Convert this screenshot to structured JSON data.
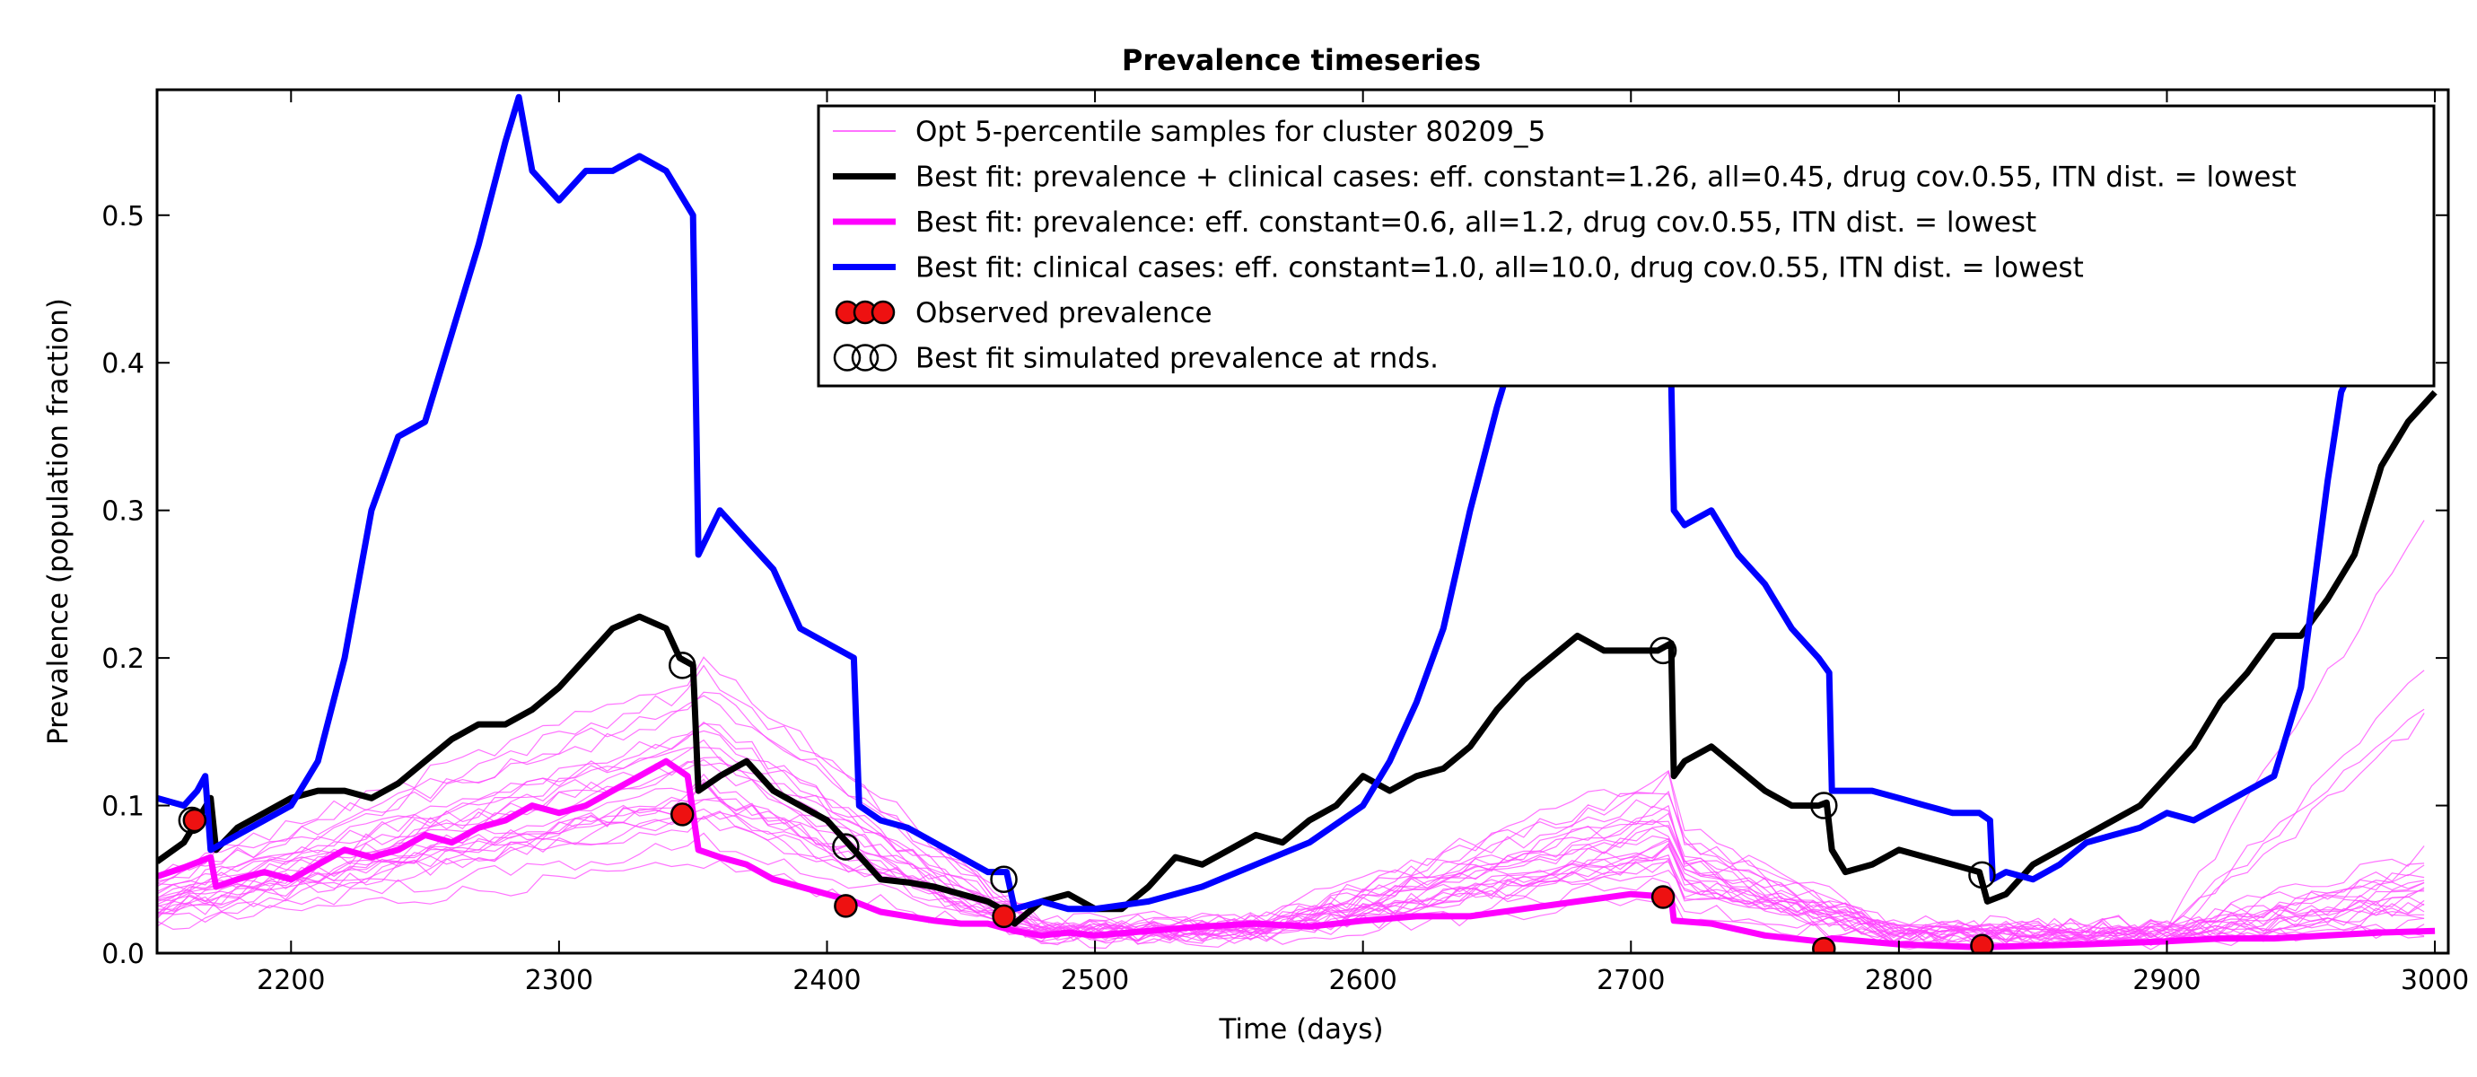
{
  "chart_data": {
    "type": "line",
    "title": "Prevalence timeseries",
    "xlabel": "Time (days)",
    "ylabel": "Prevalence (population fraction)",
    "xlim": [
      2150,
      3005
    ],
    "ylim": [
      0.0,
      0.585
    ],
    "xticks": [
      2200,
      2300,
      2400,
      2500,
      2600,
      2700,
      2800,
      2900,
      3000
    ],
    "yticks": [
      0.0,
      0.1,
      0.2,
      0.3,
      0.4,
      0.5
    ],
    "xtick_labels": [
      "2200",
      "2300",
      "2400",
      "2500",
      "2600",
      "2700",
      "2800",
      "2900",
      "3000"
    ],
    "ytick_labels": [
      "0.0",
      "0.1",
      "0.2",
      "0.3",
      "0.4",
      "0.5"
    ],
    "grid": false,
    "legend_position": "top-right",
    "colors": {
      "samples": "#ff44ff",
      "black": "#000000",
      "magenta": "#ff00ff",
      "blue": "#0000ff",
      "observed_fill": "#ee1111"
    },
    "legend": [
      {
        "label": "Opt 5-percentile samples for cluster 80209_5",
        "style": "thin-line",
        "color": "#ff44ff"
      },
      {
        "label": "Best fit: prevalence + clinical cases: eff. constant=1.26, all=0.45, drug cov.0.55, ITN dist. = lowest",
        "style": "thick-line",
        "color": "#000000"
      },
      {
        "label": "Best fit: prevalence: eff. constant=0.6, all=1.2, drug cov.0.55, ITN dist. = lowest",
        "style": "thick-line",
        "color": "#ff00ff"
      },
      {
        "label": "Best fit: clinical cases: eff. constant=1.0, all=10.0, drug cov.0.55, ITN dist. = lowest",
        "style": "thick-line",
        "color": "#0000ff"
      },
      {
        "label": "Observed prevalence",
        "style": "red-markers",
        "color": "#ee1111"
      },
      {
        "label": "Best fit simulated prevalence at rnds.",
        "style": "open-markers",
        "color": "#000000"
      }
    ],
    "series": [
      {
        "name": "Best fit: prevalence + clinical cases: eff. constant=1.26, all=0.45, drug cov.0.55, ITN dist. = lowest",
        "color": "#000000",
        "x": [
          2150,
          2160,
          2165,
          2170,
          2172,
          2180,
          2190,
          2200,
          2210,
          2220,
          2230,
          2240,
          2250,
          2260,
          2270,
          2280,
          2290,
          2300,
          2310,
          2320,
          2330,
          2340,
          2345,
          2350,
          2352,
          2360,
          2370,
          2380,
          2390,
          2400,
          2410,
          2420,
          2430,
          2440,
          2450,
          2460,
          2467,
          2470,
          2480,
          2490,
          2500,
          2510,
          2520,
          2530,
          2540,
          2550,
          2560,
          2570,
          2580,
          2590,
          2600,
          2610,
          2620,
          2630,
          2640,
          2650,
          2660,
          2670,
          2680,
          2690,
          2700,
          2710,
          2715,
          2716,
          2720,
          2730,
          2740,
          2750,
          2760,
          2770,
          2773,
          2775,
          2780,
          2790,
          2800,
          2810,
          2820,
          2830,
          2833,
          2840,
          2850,
          2860,
          2870,
          2880,
          2890,
          2900,
          2910,
          2920,
          2930,
          2940,
          2950,
          2960,
          2970,
          2980,
          2990,
          3000
        ],
        "y": [
          0.062,
          0.075,
          0.09,
          0.105,
          0.07,
          0.085,
          0.095,
          0.105,
          0.11,
          0.11,
          0.105,
          0.115,
          0.13,
          0.145,
          0.155,
          0.155,
          0.165,
          0.18,
          0.2,
          0.22,
          0.228,
          0.22,
          0.2,
          0.195,
          0.11,
          0.12,
          0.13,
          0.11,
          0.1,
          0.09,
          0.07,
          0.05,
          0.048,
          0.045,
          0.04,
          0.035,
          0.028,
          0.02,
          0.035,
          0.04,
          0.03,
          0.03,
          0.045,
          0.065,
          0.06,
          0.07,
          0.08,
          0.075,
          0.09,
          0.1,
          0.12,
          0.11,
          0.12,
          0.125,
          0.14,
          0.165,
          0.185,
          0.2,
          0.215,
          0.205,
          0.205,
          0.205,
          0.21,
          0.12,
          0.13,
          0.14,
          0.125,
          0.11,
          0.1,
          0.1,
          0.102,
          0.07,
          0.055,
          0.06,
          0.07,
          0.065,
          0.06,
          0.055,
          0.035,
          0.04,
          0.06,
          0.07,
          0.08,
          0.09,
          0.1,
          0.12,
          0.14,
          0.17,
          0.19,
          0.215,
          0.215,
          0.24,
          0.27,
          0.33,
          0.36,
          0.38
        ]
      },
      {
        "name": "Best fit: prevalence: eff. constant=0.6, all=1.2, drug cov.0.55, ITN dist. = lowest",
        "color": "#ff00ff",
        "x": [
          2150,
          2160,
          2170,
          2172,
          2180,
          2190,
          2200,
          2210,
          2220,
          2230,
          2240,
          2250,
          2260,
          2270,
          2280,
          2290,
          2300,
          2310,
          2320,
          2330,
          2340,
          2348,
          2352,
          2360,
          2370,
          2380,
          2390,
          2400,
          2410,
          2420,
          2430,
          2440,
          2450,
          2460,
          2470,
          2480,
          2490,
          2500,
          2520,
          2540,
          2560,
          2580,
          2600,
          2620,
          2640,
          2660,
          2680,
          2700,
          2715,
          2716,
          2730,
          2750,
          2770,
          2775,
          2800,
          2830,
          2850,
          2870,
          2900,
          2920,
          2940,
          2960,
          2980,
          3000
        ],
        "y": [
          0.052,
          0.058,
          0.065,
          0.045,
          0.05,
          0.055,
          0.05,
          0.06,
          0.07,
          0.065,
          0.07,
          0.08,
          0.075,
          0.085,
          0.09,
          0.1,
          0.095,
          0.1,
          0.11,
          0.12,
          0.13,
          0.12,
          0.07,
          0.065,
          0.06,
          0.05,
          0.045,
          0.04,
          0.035,
          0.028,
          0.025,
          0.022,
          0.02,
          0.02,
          0.015,
          0.012,
          0.014,
          0.012,
          0.015,
          0.018,
          0.02,
          0.018,
          0.022,
          0.025,
          0.025,
          0.03,
          0.035,
          0.04,
          0.038,
          0.022,
          0.02,
          0.012,
          0.008,
          0.01,
          0.006,
          0.004,
          0.005,
          0.006,
          0.008,
          0.01,
          0.01,
          0.012,
          0.014,
          0.015
        ]
      },
      {
        "name": "Best fit: clinical cases: eff. constant=1.0, all=10.0, drug cov.0.55, ITN dist. = lowest",
        "color": "#0000ff",
        "x": [
          2150,
          2160,
          2165,
          2168,
          2170,
          2180,
          2190,
          2200,
          2210,
          2220,
          2230,
          2240,
          2250,
          2260,
          2270,
          2280,
          2285,
          2290,
          2300,
          2310,
          2320,
          2330,
          2340,
          2350,
          2352,
          2360,
          2370,
          2380,
          2390,
          2400,
          2410,
          2412,
          2420,
          2430,
          2440,
          2450,
          2460,
          2467,
          2470,
          2480,
          2490,
          2500,
          2520,
          2540,
          2560,
          2580,
          2600,
          2610,
          2620,
          2630,
          2640,
          2650,
          2655
        ],
        "y": [
          0.105,
          0.1,
          0.11,
          0.12,
          0.07,
          0.08,
          0.09,
          0.1,
          0.13,
          0.2,
          0.3,
          0.35,
          0.36,
          0.42,
          0.48,
          0.55,
          0.58,
          0.53,
          0.51,
          0.53,
          0.53,
          0.54,
          0.53,
          0.5,
          0.27,
          0.3,
          0.28,
          0.26,
          0.22,
          0.21,
          0.2,
          0.1,
          0.09,
          0.085,
          0.075,
          0.065,
          0.055,
          0.055,
          0.03,
          0.035,
          0.03,
          0.03,
          0.035,
          0.045,
          0.06,
          0.075,
          0.1,
          0.13,
          0.17,
          0.22,
          0.3,
          0.37,
          0.4
        ]
      },
      {
        "name": "Best fit: clinical cases: eff. constant=1.0, all=10.0, drug cov.0.55, ITN dist. = lowest",
        "color": "#0000ff",
        "x": [
          2713,
          2715,
          2716,
          2720,
          2730,
          2740,
          2750,
          2760,
          2770,
          2774,
          2775,
          2780,
          2790,
          2800,
          2810,
          2820,
          2830,
          2834,
          2835,
          2840,
          2850,
          2860,
          2870,
          2880,
          2890,
          2900,
          2910,
          2920,
          2930,
          2940,
          2950,
          2955,
          2960,
          2965,
          2970
        ],
        "y": [
          0.4,
          0.39,
          0.3,
          0.29,
          0.3,
          0.27,
          0.25,
          0.22,
          0.2,
          0.19,
          0.11,
          0.11,
          0.11,
          0.105,
          0.1,
          0.095,
          0.095,
          0.09,
          0.05,
          0.055,
          0.05,
          0.06,
          0.075,
          0.08,
          0.085,
          0.095,
          0.09,
          0.1,
          0.11,
          0.12,
          0.18,
          0.25,
          0.32,
          0.38,
          0.4
        ]
      }
    ],
    "observed_prevalence": {
      "x": [
        2164,
        2346,
        2407,
        2466,
        2712,
        2772,
        2831
      ],
      "y": [
        0.09,
        0.094,
        0.032,
        0.025,
        0.038,
        0.003,
        0.005
      ]
    },
    "simulated_prevalence_at_rounds": {
      "x": [
        2163,
        2346,
        2407,
        2466,
        2712,
        2772,
        2831
      ],
      "y": [
        0.09,
        0.195,
        0.072,
        0.05,
        0.205,
        0.1,
        0.053
      ]
    },
    "percentile_samples": {
      "count": 24,
      "color": "#ff44ff"
    }
  }
}
